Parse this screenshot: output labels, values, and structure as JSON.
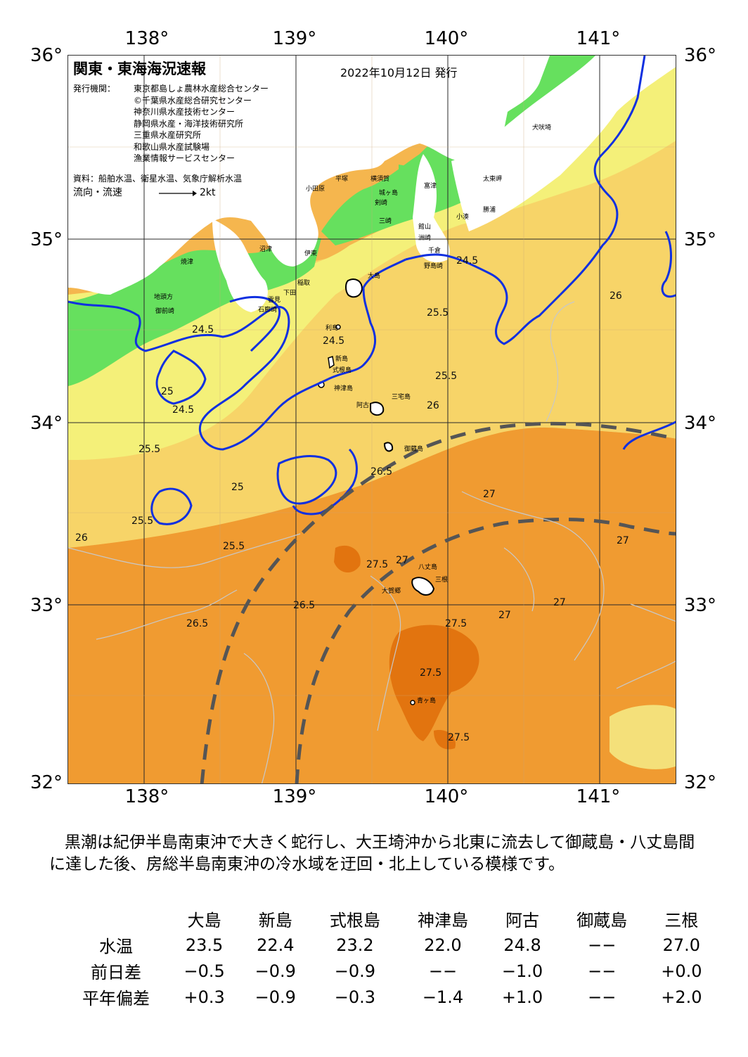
{
  "map": {
    "title": "関東・東海海況速報",
    "issue_date": "2022年10月12日 発行",
    "issuer_label": "発行機関：",
    "issuers": [
      "東京都島しょ農林水産総合センター",
      "©千葉県水産総合研究センター",
      "神奈川県水産技術センター",
      "静岡県水産・海洋技術研究所",
      "三重県水産研究所",
      "和歌山県水産試験場",
      "漁業情報サービスセンター"
    ],
    "data_sources": "資料：船舶水温、衛星水温、気象庁解析水温",
    "flow_legend_label": "流向・流速",
    "flow_legend_value": "2kt",
    "lon_labels": [
      "138°",
      "139°",
      "140°",
      "141°"
    ],
    "lat_labels": [
      "36°",
      "35°",
      "34°",
      "33°",
      "32°"
    ],
    "place_names": [
      "犬吠埼",
      "太東岬",
      "勝浦",
      "小湊",
      "富津",
      "洲崎",
      "千倉",
      "野島崎",
      "館山",
      "横須賀",
      "平塚",
      "小田原",
      "城ヶ島",
      "三崎",
      "剣崎",
      "沼津",
      "焼津",
      "伊東",
      "稲取",
      "下田",
      "石廊崎",
      "御前崎",
      "地頭方",
      "大島",
      "利島",
      "新島",
      "式根島",
      "神津島",
      "三宅島",
      "阿古",
      "御蔵島",
      "八丈島",
      "三根",
      "大賀郷",
      "青ヶ島",
      "雲見"
    ],
    "isotherm_labels": [
      "24.5",
      "25",
      "25.5",
      "26",
      "26.5",
      "27",
      "27.5"
    ]
  },
  "summary_text": "黒潮は紀伊半島南東沖で大きく蛇行し、大王埼沖から北東に流去して御蔵島・八丈島間に達した後、房総半島南東沖の冷水域を迂回・北上している模様です。",
  "table": {
    "columns": [
      "大島",
      "新島",
      "式根島",
      "神津島",
      "阿古",
      "御蔵島",
      "三根"
    ],
    "rows": [
      {
        "label": "水温",
        "values": [
          "23.5",
          "22.4",
          "23.2",
          "22.0",
          "24.8",
          "−−",
          "27.0"
        ]
      },
      {
        "label": "前日差",
        "values": [
          "−0.5",
          "−0.9",
          "−0.9",
          "−−",
          "−1.0",
          "−−",
          "+0.0"
        ]
      },
      {
        "label": "平年偏差",
        "values": [
          "+0.3",
          "−0.9",
          "−0.3",
          "−1.4",
          "+1.0",
          "−−",
          "+2.0"
        ]
      }
    ]
  },
  "colors": {
    "land": "#ffffff",
    "t_cold": "#66e05e",
    "t_cool": "#b8ee70",
    "t_mid": "#f4f079",
    "t_warm1": "#f7d468",
    "t_warm2": "#f5b64e",
    "t_warm3": "#f09b31",
    "t_hot": "#e2740f",
    "kuroshio_axis": "#555555",
    "contour_blue": "#1030e0"
  }
}
